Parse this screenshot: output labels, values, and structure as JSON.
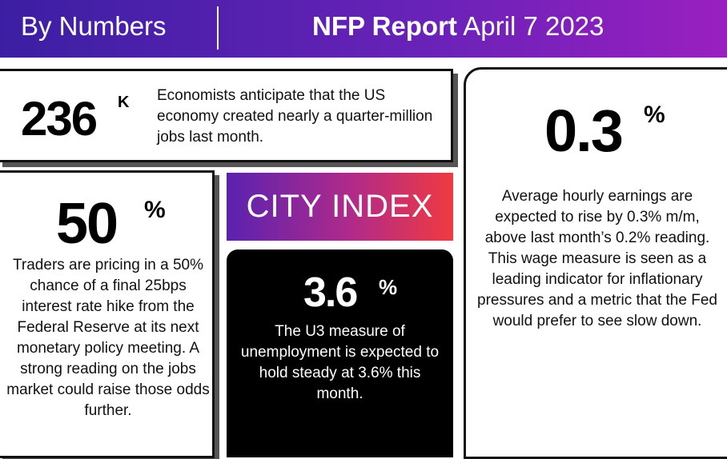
{
  "header": {
    "title": "By Numbers",
    "report_bold": "NFP Report",
    "report_date": "April 7 2023"
  },
  "cards": [
    {
      "figure": "236",
      "unit": "K",
      "text": "Economists anticipate that the US economy created nearly a quarter-million jobs last month."
    },
    {
      "figure": "50",
      "unit": "%",
      "text": "Traders are pricing in a 50% chance of a final 25bps interest rate hike from the Federal Reserve at its next monetary policy meeting. A strong reading on the jobs market could raise those odds further."
    },
    {
      "figure": "3.6",
      "unit": "%",
      "text": "The U3 measure of unemployment is expected to hold steady at 3.6% this month."
    },
    {
      "figure": "0.3",
      "unit": "%",
      "text": "Average hourly earnings are expected to rise by 0.3% m/m, above last month’s 0.2% reading. This wage measure is seen as a leading indicator for inflationary pressures and a metric that the Fed would prefer to see slow down."
    }
  ],
  "logo": "CITY INDEX"
}
